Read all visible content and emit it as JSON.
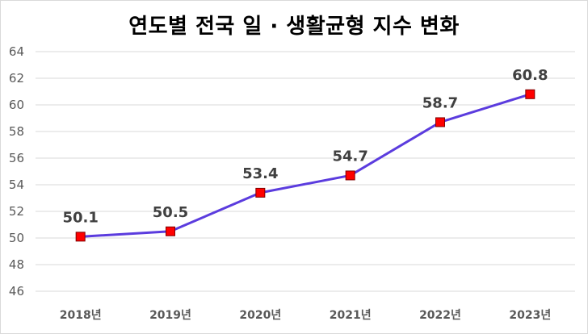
{
  "chart_data": {
    "type": "line",
    "title": "연도별 전국 일 · 생활균형 지수 변화",
    "xlabel": "",
    "ylabel": "",
    "categories": [
      "2018년",
      "2019년",
      "2020년",
      "2021년",
      "2022년",
      "2023년"
    ],
    "series": [
      {
        "values": [
          50.1,
          50.5,
          53.4,
          54.7,
          58.7,
          60.8
        ]
      }
    ],
    "data_labels": [
      "50.1",
      "50.5",
      "53.4",
      "54.7",
      "58.7",
      "60.8"
    ],
    "ylim": [
      46,
      64
    ],
    "yticks": [
      "46",
      "48",
      "50",
      "52",
      "54",
      "56",
      "58",
      "60",
      "62",
      "64"
    ],
    "grid": true,
    "legend": "none",
    "colors": {
      "line": "#5b3cde",
      "marker": "#ff0000",
      "marker_edge": "#7f0000",
      "grid": "#d9d9d9"
    }
  }
}
